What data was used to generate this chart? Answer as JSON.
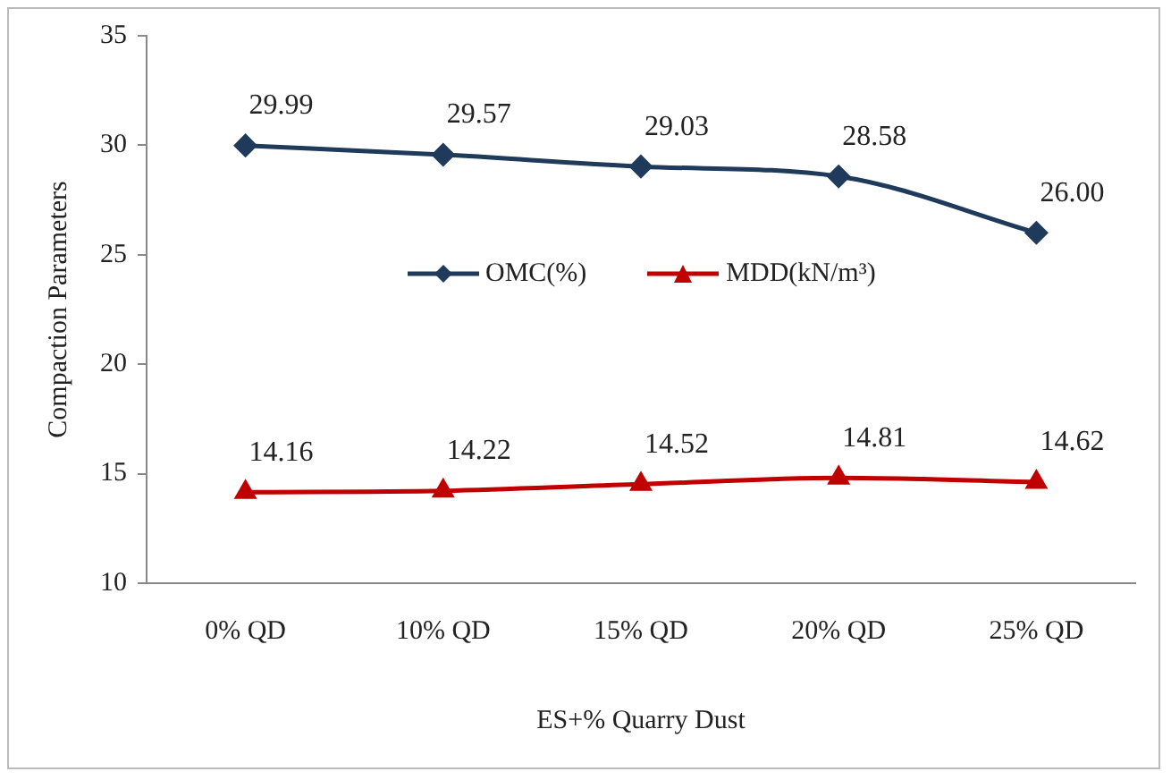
{
  "chart_data": {
    "type": "line",
    "xlabel": "ES+% Quarry Dust",
    "ylabel": "Compaction Parameters",
    "categories": [
      "0% QD",
      "10% QD",
      "15% QD",
      "20% QD",
      "25% QD"
    ],
    "series": [
      {
        "name": "OMC(%)",
        "color": "#1f3a5a",
        "marker": "diamond",
        "values": [
          29.99,
          29.57,
          29.03,
          28.58,
          26.0
        ],
        "value_labels": [
          "29.99",
          "29.57",
          "29.03",
          "28.58",
          "26.00"
        ]
      },
      {
        "name": "MDD(kN/m³)",
        "color": "#c00000",
        "marker": "triangle",
        "values": [
          14.16,
          14.22,
          14.52,
          14.81,
          14.62
        ],
        "value_labels": [
          "14.16",
          "14.22",
          "14.52",
          "14.81",
          "14.62"
        ]
      }
    ],
    "ylim": [
      10,
      35
    ],
    "yticks": [
      10,
      15,
      20,
      25,
      30,
      35
    ],
    "grid": false,
    "legend": "center"
  }
}
